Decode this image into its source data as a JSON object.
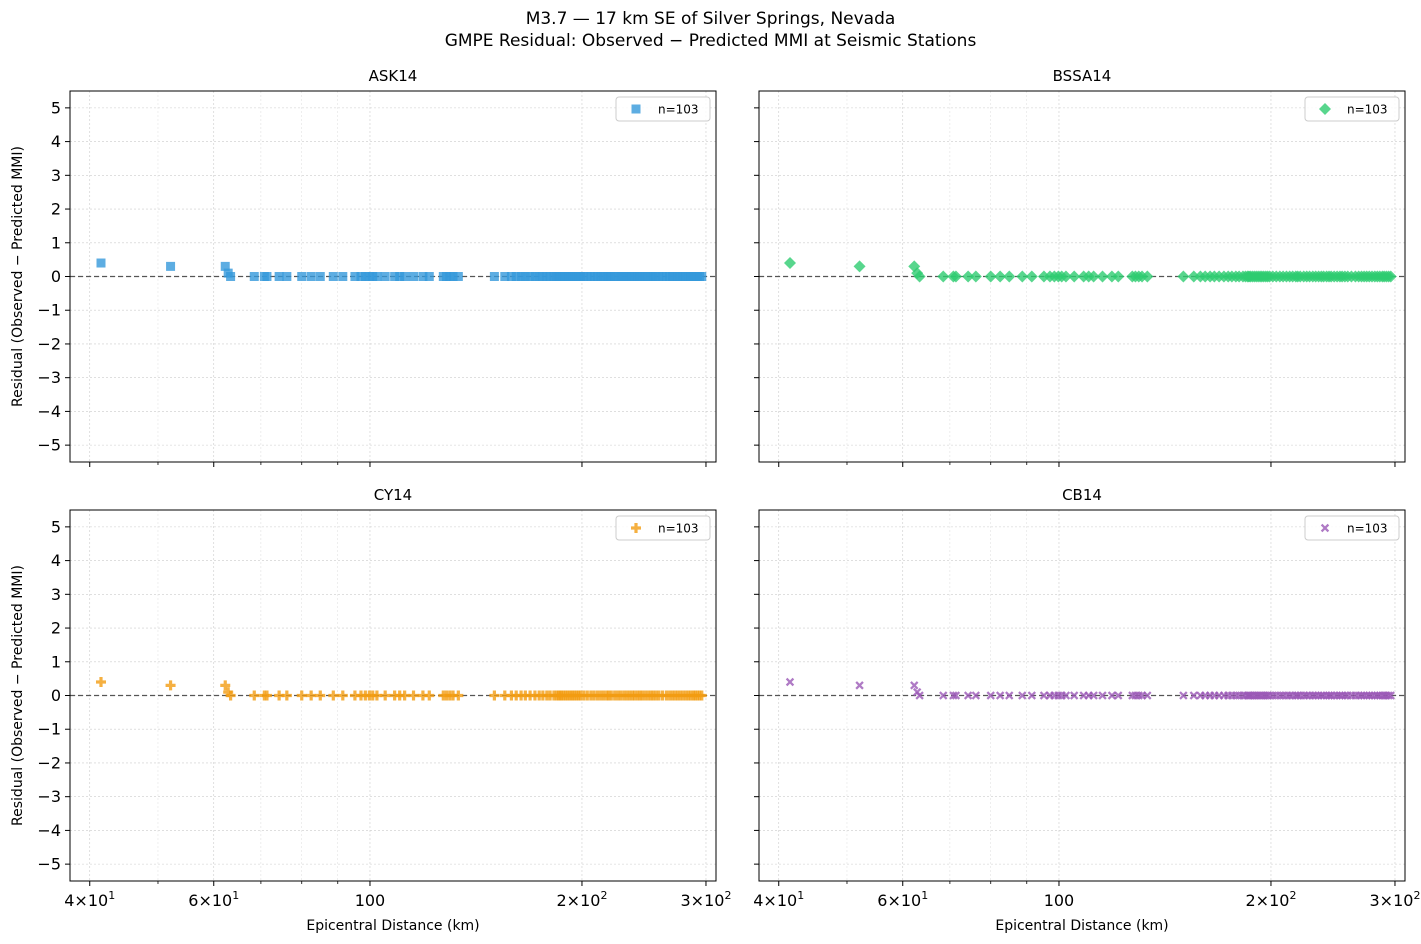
{
  "figure": {
    "title_line1": "M3.7 — 17 km SE of Silver Springs, Nevada",
    "title_line2": "GMPE Residual: Observed − Predicted MMI at Seismic Stations"
  },
  "chart_data": {
    "type": "scatter",
    "shared": {
      "xlabel": "Epicentral Distance (km)",
      "ylabel": "Residual (Observed − Predicted MMI)",
      "xscale": "log",
      "xlim": [
        37.5,
        310
      ],
      "ylim": [
        -5.5,
        5.5
      ],
      "yticks": [
        5,
        4,
        3,
        2,
        1,
        0,
        -1,
        -2,
        -3,
        -4,
        -5
      ],
      "ytick_labels": [
        "5",
        "4",
        "3",
        "2",
        "1",
        "0",
        "−1",
        "−2",
        "−3",
        "−4",
        "−5"
      ],
      "xticks": [
        {
          "value": 40,
          "base": "4",
          "mult": "×10",
          "exp": "1"
        },
        {
          "value": 60,
          "base": "6",
          "mult": "×10",
          "exp": "1"
        },
        {
          "value": 100,
          "base": "100",
          "mult": "",
          "exp": ""
        },
        {
          "value": 200,
          "base": "2",
          "mult": "×10",
          "exp": "2"
        },
        {
          "value": 300,
          "base": "3",
          "mult": "×10",
          "exp": "2"
        }
      ],
      "minor_xticks": [
        50,
        70,
        80,
        90
      ],
      "grid": true,
      "reference_line_y": 0,
      "legend_position": "top-right",
      "x": [
        41.5,
        52.1,
        62.3,
        62.9,
        63.4,
        68.5,
        70.8,
        71.4,
        74.3,
        76.2,
        80.0,
        82.5,
        85.0,
        88.7,
        91.5,
        95.2,
        97.1,
        98.5,
        99.8,
        100.9,
        102.3,
        105.1,
        108.4,
        110.2,
        112.0,
        115.3,
        118.9,
        121.4,
        127.1,
        128.4,
        129.8,
        131.2,
        133.5,
        150.2,
        155.4,
        158.8,
        161.3,
        163.9,
        166.2,
        168.8,
        171.5,
        173.9,
        176.0,
        178.3,
        180.2,
        182.5,
        184.0,
        185.3,
        186.1,
        187.0,
        188.2,
        189.4,
        190.6,
        191.8,
        193.0,
        194.1,
        195.3,
        196.6,
        197.8,
        199.1,
        201.2,
        203.5,
        205.9,
        208.1,
        210.4,
        212.6,
        214.7,
        216.9,
        218.3,
        220.1,
        222.6,
        224.8,
        226.9,
        229.3,
        231.5,
        233.7,
        235.8,
        237.6,
        239.9,
        241.8,
        243.5,
        245.9,
        248.3,
        250.6,
        252.4,
        254.7,
        257.1,
        260.2,
        263.6,
        266.4,
        268.9,
        271.2,
        273.5,
        275.8,
        278.3,
        280.9,
        283.2,
        285.5,
        287.9,
        289.6,
        291.7,
        293.8,
        295.9
      ],
      "y": [
        0.4,
        0.3,
        0.3,
        0.1,
        0.0,
        0.0,
        0.0,
        0.0,
        0.0,
        0.0,
        0.0,
        0.0,
        0.0,
        0.0,
        0.0,
        0.0,
        0.0,
        0.0,
        0.0,
        0.0,
        0.0,
        0.0,
        0.0,
        0.0,
        0.0,
        0.0,
        0.0,
        0.0,
        0.0,
        0.0,
        0.0,
        0.0,
        0.0,
        0.0,
        0.0,
        0.0,
        0.0,
        0.0,
        0.0,
        0.0,
        0.0,
        0.0,
        0.0,
        0.0,
        0.0,
        0.0,
        0.0,
        0.0,
        0.0,
        0.0,
        0.0,
        0.0,
        0.0,
        0.0,
        0.0,
        0.0,
        0.0,
        0.0,
        0.0,
        0.0,
        0.0,
        0.0,
        0.0,
        0.0,
        0.0,
        0.0,
        0.0,
        0.0,
        0.0,
        0.0,
        0.0,
        0.0,
        0.0,
        0.0,
        0.0,
        0.0,
        0.0,
        0.0,
        0.0,
        0.0,
        0.0,
        0.0,
        0.0,
        0.0,
        0.0,
        0.0,
        0.0,
        0.0,
        0.0,
        0.0,
        0.0,
        0.0,
        0.0,
        0.0,
        0.0,
        0.0,
        0.0,
        0.0,
        0.0,
        0.0,
        0.0,
        0.0,
        0.0
      ]
    },
    "panels": [
      {
        "title": "ASK14",
        "marker": "square",
        "color": "#3498db",
        "legend": "n=103"
      },
      {
        "title": "BSSA14",
        "marker": "diamond",
        "color": "#2ecc71",
        "legend": "n=103"
      },
      {
        "title": "CY14",
        "marker": "plus",
        "color": "#f39c12",
        "legend": "n=103"
      },
      {
        "title": "CB14",
        "marker": "x",
        "color": "#9b59b6",
        "legend": "n=103"
      }
    ]
  }
}
